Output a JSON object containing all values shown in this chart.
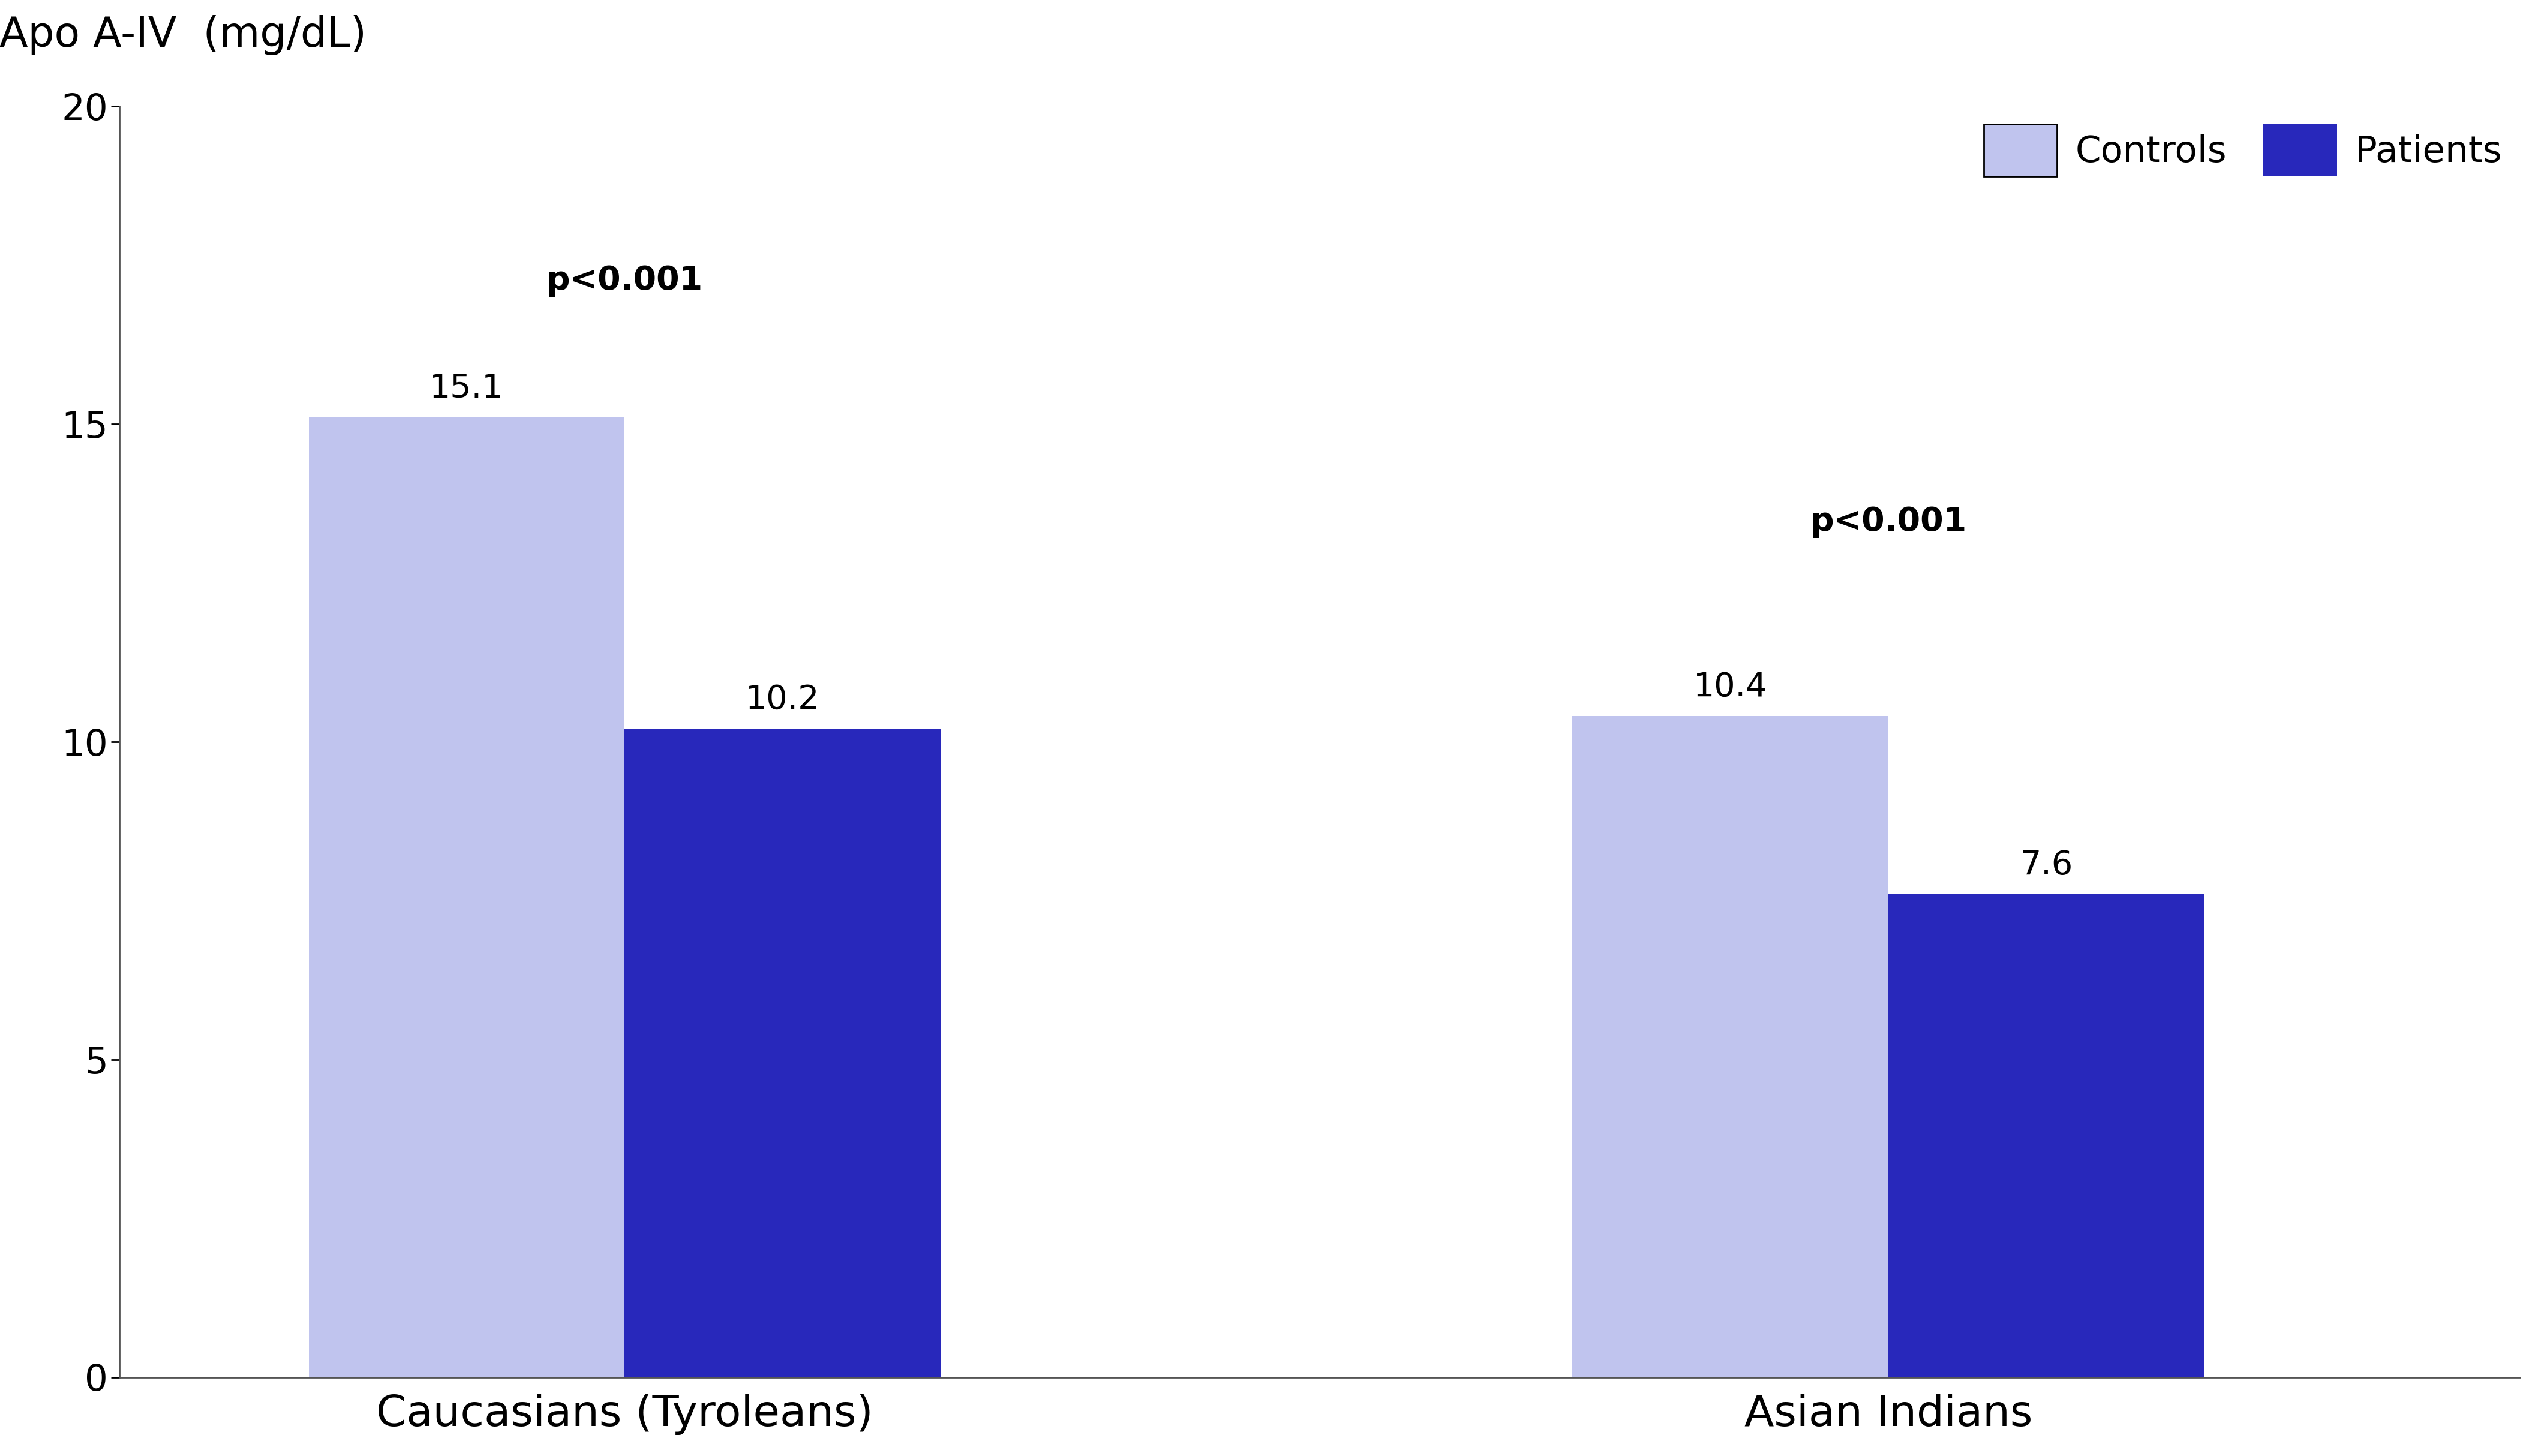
{
  "groups": [
    "Caucasians (Tyroleans)",
    "Asian Indians"
  ],
  "controls_values": [
    15.1,
    10.4
  ],
  "patients_values": [
    10.2,
    7.6
  ],
  "controls_color": "#c0c4ee",
  "patients_color": "#2828bb",
  "ylabel": "Apo A-IV  (mg/dL)",
  "ylim": [
    0,
    20
  ],
  "yticks": [
    0,
    5,
    10,
    15,
    20
  ],
  "p_value_text": "p<0.001",
  "p_cau_x": 1.0,
  "p_cau_y": 17.0,
  "p_asi_x": 4.0,
  "p_asi_y": 13.2,
  "bar_width": 0.75,
  "group_positions": [
    1.0,
    4.0
  ],
  "legend_labels": [
    "Controls",
    "Patients"
  ],
  "value_fontsize": 40,
  "label_fontsize": 50,
  "tick_fontsize": 44,
  "pval_fontsize": 40,
  "xtick_fontsize": 52,
  "background_color": "#ffffff",
  "spine_color": "#555555",
  "xlim": [
    -0.2,
    5.5
  ]
}
